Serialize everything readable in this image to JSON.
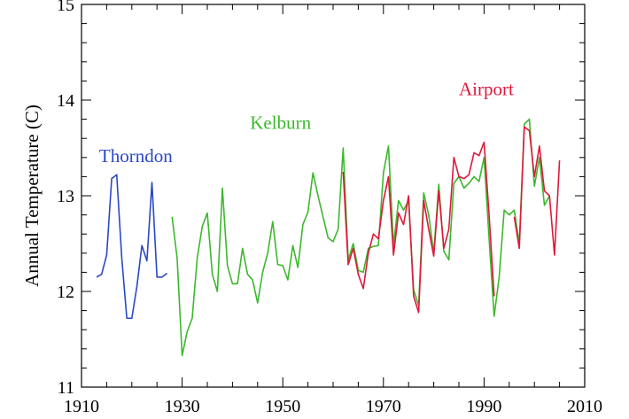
{
  "chart_data": {
    "type": "line",
    "title": "",
    "xlabel": "",
    "ylabel": "Annual Temperature (C)",
    "xlim": [
      1910,
      2010
    ],
    "ylim": [
      11,
      15
    ],
    "x_ticks": [
      "1910",
      "1930",
      "1950",
      "1970",
      "1990",
      "2010"
    ],
    "y_ticks": [
      "11",
      "12",
      "13",
      "14",
      "15"
    ],
    "grid": false,
    "legend": "none",
    "series": [
      {
        "name": "Thorndon",
        "color": "#2a48c8",
        "x": [
          1913,
          1914,
          1915,
          1916,
          1917,
          1918,
          1919,
          1920,
          1921,
          1922,
          1923,
          1924,
          1925,
          1926,
          1927
        ],
        "y": [
          12.15,
          12.18,
          12.38,
          13.18,
          13.22,
          12.35,
          11.72,
          11.72,
          12.05,
          12.48,
          12.32,
          13.14,
          12.15,
          12.15,
          12.19
        ]
      },
      {
        "name": "Kelburn",
        "color": "#3cb82c",
        "x": [
          1928,
          1929,
          1930,
          1931,
          1932,
          1933,
          1934,
          1935,
          1936,
          1937,
          1938,
          1939,
          1940,
          1941,
          1942,
          1943,
          1944,
          1945,
          1946,
          1947,
          1948,
          1949,
          1950,
          1951,
          1952,
          1953,
          1954,
          1955,
          1956,
          1957,
          1958,
          1959,
          1960,
          1961,
          1962,
          1963,
          1964,
          1965,
          1966,
          1967,
          1968,
          1969,
          1970,
          1971,
          1972,
          1973,
          1974,
          1975,
          1976,
          1977,
          1978,
          1979,
          1980,
          1981,
          1982,
          1983,
          1984,
          1985,
          1986,
          1987,
          1988,
          1989,
          1990,
          1991,
          1992,
          1993,
          1994,
          1995,
          1996,
          1997,
          1998,
          1999,
          2000,
          2001,
          2002,
          2003
        ],
        "y": [
          12.78,
          12.35,
          11.33,
          11.58,
          11.72,
          12.35,
          12.68,
          12.82,
          12.18,
          12.0,
          13.08,
          12.27,
          12.08,
          12.08,
          12.45,
          12.18,
          12.12,
          11.88,
          12.2,
          12.4,
          12.73,
          12.28,
          12.27,
          12.12,
          12.48,
          12.25,
          12.7,
          12.83,
          13.24,
          13.0,
          12.78,
          12.56,
          12.52,
          12.65,
          13.5,
          12.33,
          12.5,
          12.22,
          12.2,
          12.45,
          12.47,
          12.48,
          13.24,
          13.52,
          12.48,
          12.95,
          12.85,
          12.95,
          12.02,
          11.85,
          13.03,
          12.8,
          12.4,
          13.12,
          12.42,
          12.33,
          13.13,
          13.2,
          13.08,
          13.13,
          13.2,
          13.15,
          13.4,
          12.55,
          11.74,
          12.15,
          12.85,
          12.8,
          12.85,
          12.5,
          13.75,
          13.8,
          13.1,
          13.4,
          12.9,
          13.0
        ]
      },
      {
        "name": "Airport",
        "color": "#e0183c",
        "x": [
          1962,
          1963,
          1964,
          1965,
          1966,
          1967,
          1968,
          1969,
          1970,
          1971,
          1972,
          1973,
          1974,
          1975,
          1976,
          1977,
          1978,
          1979,
          1980,
          1981,
          1982,
          1983,
          1984,
          1985,
          1986,
          1987,
          1988,
          1989,
          1990,
          1991,
          1992,
          1993,
          1994,
          1995,
          1996,
          1997,
          1998,
          1999,
          2000,
          2001,
          2002,
          2003,
          2004,
          2005
        ],
        "y": [
          13.25,
          12.28,
          12.45,
          12.18,
          12.03,
          12.4,
          12.6,
          12.55,
          12.95,
          13.2,
          12.38,
          12.82,
          12.7,
          13.0,
          11.95,
          11.78,
          12.95,
          12.65,
          12.37,
          13.05,
          12.45,
          12.65,
          13.4,
          13.2,
          13.18,
          13.22,
          13.45,
          13.42,
          13.56,
          12.8,
          11.95,
          null,
          null,
          null,
          12.78,
          12.45,
          13.72,
          13.68,
          13.2,
          13.52,
          13.05,
          13.0,
          12.38,
          13.37
        ]
      }
    ]
  }
}
